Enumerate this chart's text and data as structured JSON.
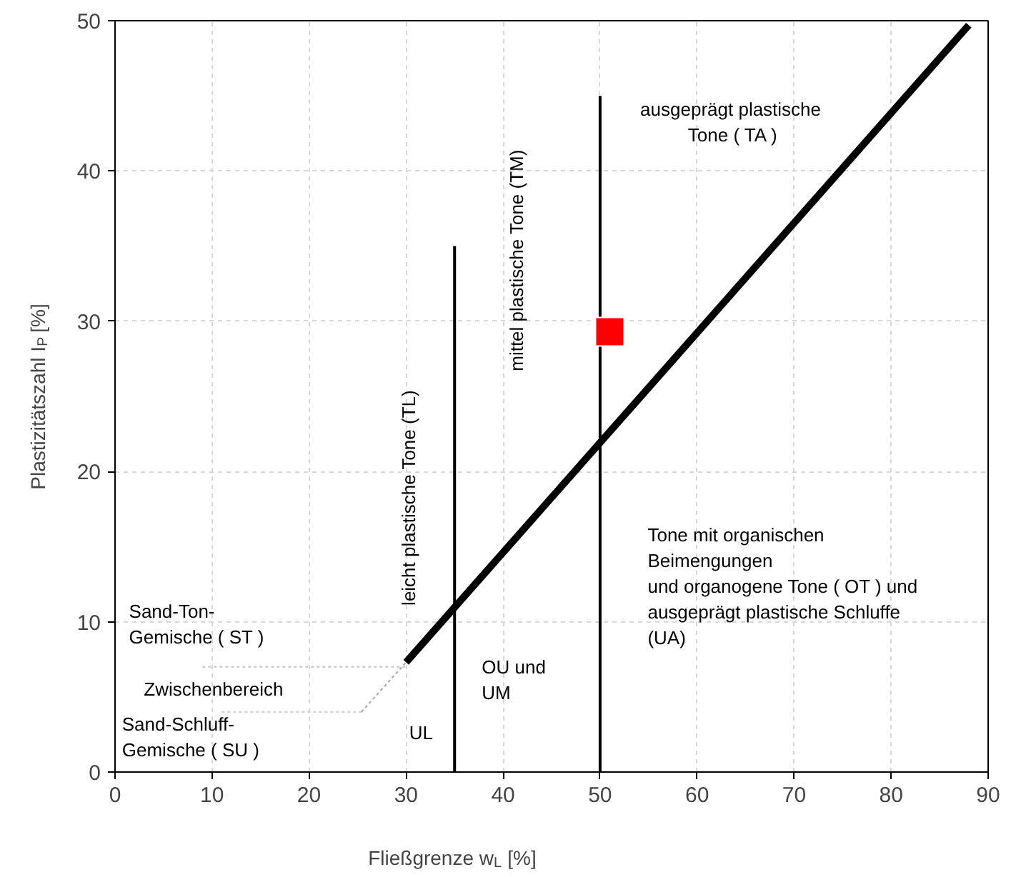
{
  "chart_data": {
    "type": "line",
    "xlabel": "Fließgrenze w$_{L}$ [%]",
    "ylabel": "Plastizitätszahl I$_{P}$ [%]",
    "xlim": [
      0,
      90
    ],
    "ylim": [
      0,
      50
    ],
    "xticks": [
      0,
      10,
      20,
      30,
      40,
      50,
      60,
      70,
      80,
      90
    ],
    "yticks": [
      0,
      10,
      20,
      30,
      40,
      50
    ],
    "grid": true,
    "series": [
      {
        "color": "#000000",
        "x": [
          30,
          88
        ],
        "values": [
          7.3,
          49.7
        ]
      },
      {
        "color": "#000000",
        "x": [
          35,
          35
        ],
        "values": [
          0,
          35
        ]
      },
      {
        "color": "#000000",
        "x": [
          50,
          50
        ],
        "values": [
          0,
          45
        ]
      },
      {
        "color": "#b0b0b0",
        "line_style": "dotted",
        "x": [
          25.4,
          30
        ],
        "values": [
          4,
          7.3
        ]
      },
      {
        "color": "#d0d0d0",
        "line_style": "dotted",
        "x": [
          9,
          30
        ],
        "values": [
          7,
          7
        ]
      },
      {
        "color": "#d0d0d0",
        "line_style": "dotted",
        "x": [
          11,
          25.4
        ],
        "values": [
          4,
          4
        ]
      },
      {
        "type": "scatter",
        "color": "#ff0000",
        "marker": "square",
        "x": [
          51
        ],
        "values": [
          29.3
        ]
      }
    ],
    "annotations": [
      "ausgeprägt  plastische\nTone ( TA )",
      "mittel plastische Tone   (TM)",
      "leicht plastische Tone   (TL)",
      "Tone mit organischen\nBeimengungen\nund organogene Tone ( OT ) und\nausgeprägt plastische Schluffe\n(UA)",
      "Sand-Ton-\nGemische ( ST )",
      "Zwischenbereich",
      "Sand-Schluff-\nGemische ( SU )",
      "UL",
      "OU  und\nUM"
    ]
  }
}
